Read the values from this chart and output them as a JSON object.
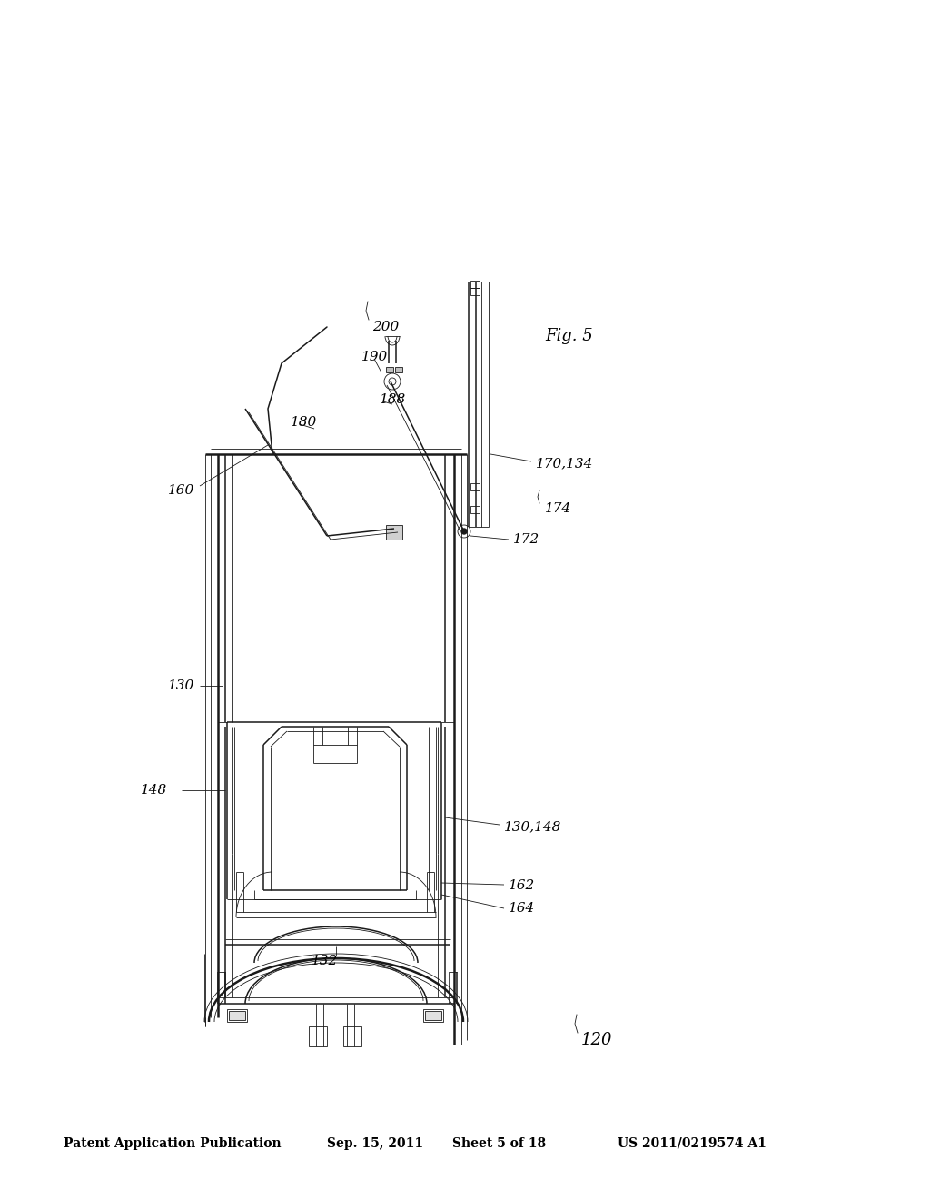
{
  "background_color": "#ffffff",
  "header_text": "Patent Application Publication",
  "header_date": "Sep. 15, 2011",
  "header_sheet": "Sheet 5 of 18",
  "header_patent": "US 2011/0219574 A1",
  "figure_label": "Fig. 5",
  "line_color": "#1a1a1a",
  "lw_thin": 0.6,
  "lw_med": 1.1,
  "lw_thick": 1.8
}
